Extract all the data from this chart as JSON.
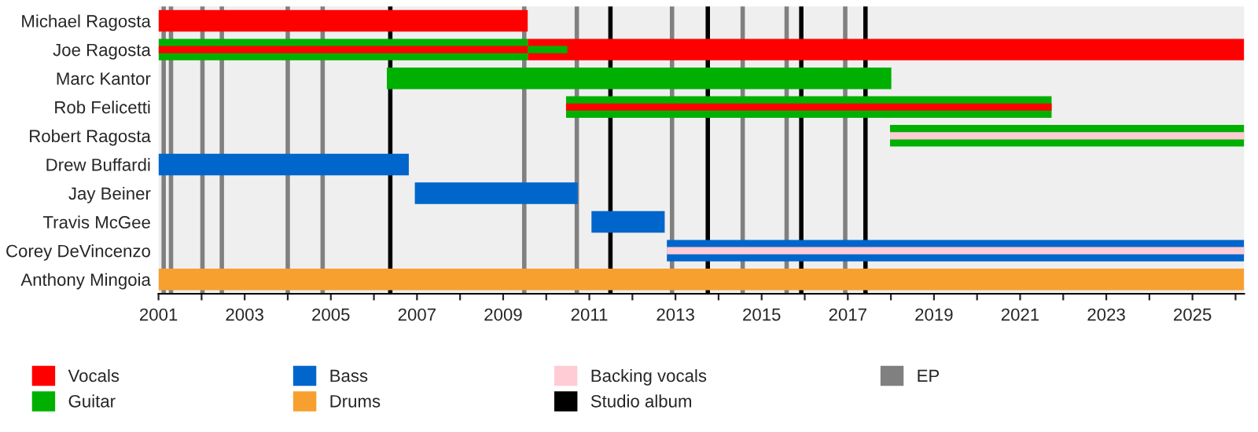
{
  "chart_data": {
    "type": "bar",
    "orientation": "horizontal",
    "categories": [
      "Michael Ragosta",
      "Joe Ragosta",
      "Marc Kantor",
      "Rob Felicetti",
      "Robert Ragosta",
      "Drew Buffardi",
      "Jay Beiner",
      "Travis McGee",
      "Corey DeVincenzo",
      "Anthony Mingoia"
    ],
    "series": [
      {
        "name": "Vocals",
        "color": "#ff0000",
        "base": [
          2001,
          2009.57,
          null,
          null,
          null,
          null,
          null,
          null,
          null,
          null
        ],
        "values": [
          8.57,
          16.63,
          null,
          null,
          null,
          null,
          null,
          null,
          null,
          null
        ]
      },
      {
        "name": "Guitar",
        "color": "#00b000",
        "base": [
          null,
          2001,
          2006.3,
          2010.46,
          2017.98,
          null,
          null,
          null,
          null,
          null
        ],
        "values": [
          null,
          8.57,
          11.71,
          11.27,
          8.22,
          null,
          null,
          null,
          null,
          null
        ]
      },
      {
        "name": "Bass",
        "color": "#0066cc",
        "base": [
          null,
          null,
          null,
          null,
          null,
          2001,
          2006.95,
          2011.05,
          2012.8,
          null
        ],
        "values": [
          null,
          null,
          null,
          null,
          null,
          5.81,
          3.78,
          1.7,
          13.4,
          null
        ]
      },
      {
        "name": "Drums",
        "color": "#f7a030",
        "base": [
          null,
          null,
          null,
          null,
          null,
          null,
          null,
          null,
          null,
          2001
        ],
        "values": [
          null,
          null,
          null,
          null,
          null,
          null,
          null,
          null,
          null,
          25.2
        ]
      },
      {
        "name": "Backing vocals",
        "color": "#ffccd5",
        "base": [
          null,
          null,
          null,
          null,
          2017.98,
          null,
          null,
          null,
          2012.8,
          null
        ],
        "values": [
          null,
          null,
          null,
          null,
          8.22,
          null,
          null,
          null,
          13.4,
          null
        ]
      },
      {
        "color": "#ff0000",
        "base": [
          null,
          2001,
          null,
          2010.46,
          null,
          null,
          null,
          null,
          null,
          null
        ],
        "values": [
          null,
          8.57,
          null,
          11.27,
          null,
          null,
          null,
          null,
          null,
          null
        ]
      },
      {
        "color": "#00b000",
        "base": [
          null,
          2009.57,
          null,
          null,
          null,
          null,
          null,
          null,
          null,
          null
        ],
        "values": [
          null,
          0.92,
          null,
          null,
          null,
          null,
          null,
          null,
          null,
          null
        ]
      }
    ],
    "ref_lines": [
      {
        "axis": "x",
        "value": 2006.38,
        "label": "Studio album",
        "color": "#000000"
      },
      {
        "axis": "x",
        "value": 2011.49,
        "color": "#000000"
      },
      {
        "axis": "x",
        "value": 2013.75,
        "color": "#000000"
      },
      {
        "axis": "x",
        "value": 2015.92,
        "color": "#000000"
      },
      {
        "axis": "x",
        "value": 2017.41,
        "color": "#000000"
      },
      {
        "axis": "x",
        "value": 2001.12,
        "label": "EP",
        "color": "#808080"
      },
      {
        "axis": "x",
        "value": 2001.29,
        "color": "#808080"
      },
      {
        "axis": "x",
        "value": 2002.02,
        "color": "#808080"
      },
      {
        "axis": "x",
        "value": 2002.47,
        "color": "#808080"
      },
      {
        "axis": "x",
        "value": 2004.0,
        "color": "#808080"
      },
      {
        "axis": "x",
        "value": 2004.81,
        "color": "#808080"
      },
      {
        "axis": "x",
        "value": 2009.49,
        "color": "#808080"
      },
      {
        "axis": "x",
        "value": 2010.71,
        "color": "#808080"
      },
      {
        "axis": "x",
        "value": 2012.92,
        "color": "#808080"
      },
      {
        "axis": "x",
        "value": 2014.56,
        "color": "#808080"
      },
      {
        "axis": "x",
        "value": 2015.58,
        "color": "#808080"
      },
      {
        "axis": "x",
        "value": 2016.94,
        "color": "#808080"
      }
    ],
    "xlim": [
      2001,
      2026.2
    ],
    "xticks": [
      2001,
      {
        "value": 2002,
        "label": null
      },
      2003,
      {
        "value": 2004,
        "label": null
      },
      2005,
      {
        "value": 2006,
        "label": null
      },
      2007,
      {
        "value": 2008,
        "label": null
      },
      2009,
      {
        "value": 2010,
        "label": null
      },
      2011,
      {
        "value": 2012,
        "label": null
      },
      2013,
      {
        "value": 2014,
        "label": null
      },
      2015,
      {
        "value": 2016,
        "label": null
      },
      2017,
      {
        "value": 2018,
        "label": null
      },
      2019,
      {
        "value": 2020,
        "label": null
      },
      2021,
      {
        "value": 2022,
        "label": null
      },
      2023,
      {
        "value": 2024,
        "label": null
      },
      2025,
      {
        "value": 2026,
        "label": null
      }
    ],
    "grid": false,
    "legend": "bottom"
  }
}
